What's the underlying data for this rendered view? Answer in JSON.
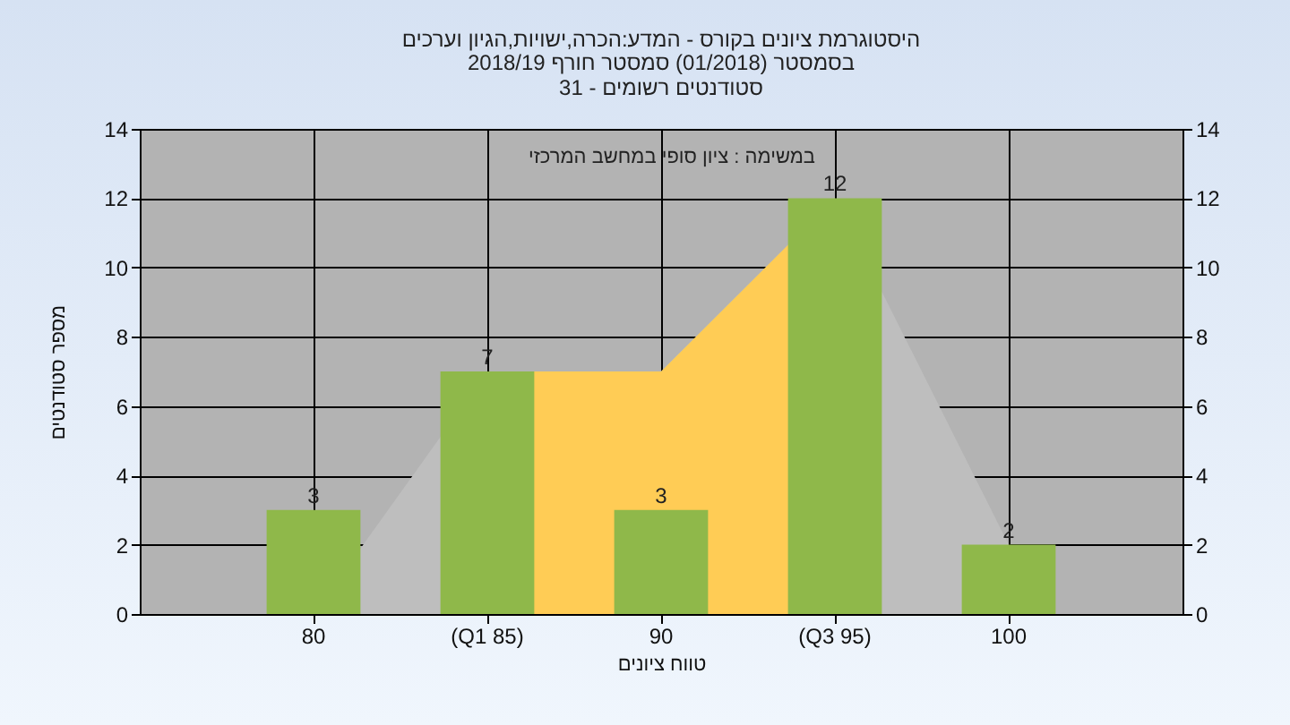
{
  "chart_data": {
    "type": "bar",
    "title": "היסטוגרמת ציונים בקורס - המדע:הכרה,ישויות,הגיון וערכים",
    "subtitle": "בסמסטר  (01/2018)  סמסטר חורף 2018/19\nסטודנטים רשומים - 31",
    "xlabel": "טווח ציונים",
    "ylabel": "מספר סטודנטים",
    "annotations": [
      "במשימה : ציון סופי במחשב המרכזי"
    ],
    "categories": [
      "80",
      "(Q1 85)",
      "90",
      "(Q3 95)",
      "100"
    ],
    "series": [
      {
        "type": "area",
        "color": "#bebebe",
        "values": [
          0,
          7,
          7,
          12,
          2
        ]
      },
      {
        "type": "area",
        "color": "#ffcc55",
        "values": [
          null,
          7,
          7,
          12,
          null
        ]
      },
      {
        "color": "#8fb84a",
        "values": [
          3,
          7,
          3,
          12,
          2
        ],
        "value_labels": [
          "3",
          "7",
          "3",
          "12",
          "2"
        ]
      }
    ],
    "ylim": [
      0,
      14
    ],
    "yticks": [
      0,
      2,
      4,
      6,
      8,
      10,
      12,
      14
    ],
    "y2lim": [
      0,
      14
    ],
    "y2ticks": [
      0,
      2,
      4,
      6,
      8,
      10,
      12,
      14
    ],
    "grid": true
  }
}
